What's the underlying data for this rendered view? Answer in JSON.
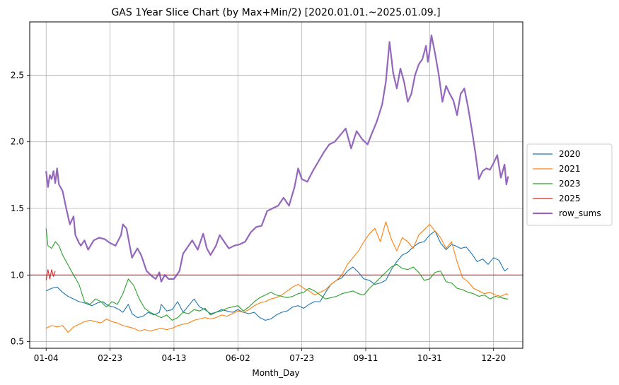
{
  "chart_data": {
    "type": "line",
    "title": "GAS 1Year Slice Chart (by Max+Min/2) [2020.01.01.~2025.01.09.]",
    "xlabel": "Month_Day",
    "ylabel": "",
    "x_tick_labels": [
      "01-04",
      "02-23",
      "04-13",
      "06-02",
      "07-23",
      "09-11",
      "10-31",
      "12-20"
    ],
    "y_tick_labels": [
      "0.5",
      "1.0",
      "1.5",
      "2.0",
      "2.5"
    ],
    "x_tick_positions": [
      0,
      35,
      70,
      105,
      140,
      175,
      210,
      245
    ],
    "x_range": [
      -9,
      261
    ],
    "y_range": [
      0.45,
      2.9
    ],
    "grid": true,
    "legend_position": "right",
    "series": [
      {
        "name": "2020",
        "color": "#1f77b4",
        "x": [
          0,
          3,
          6,
          9,
          12,
          15,
          18,
          21,
          25,
          28,
          31,
          34,
          37,
          40,
          42,
          45,
          47,
          50,
          53,
          56,
          59,
          62,
          63,
          66,
          69,
          72,
          75,
          78,
          81,
          84,
          87,
          90,
          93,
          96,
          99,
          102,
          105,
          108,
          111,
          114,
          117,
          120,
          123,
          126,
          129,
          132,
          135,
          138,
          141,
          144,
          147,
          150,
          153,
          156,
          159,
          162,
          165,
          168,
          171,
          174,
          177,
          180,
          183,
          186,
          189,
          192,
          195,
          198,
          201,
          204,
          207,
          210,
          213,
          216,
          219,
          222,
          224,
          227,
          230,
          233,
          236,
          239,
          242,
          245,
          248,
          251,
          253
        ],
        "values": [
          0.88,
          0.9,
          0.91,
          0.87,
          0.84,
          0.82,
          0.8,
          0.79,
          0.77,
          0.79,
          0.8,
          0.77,
          0.76,
          0.74,
          0.72,
          0.78,
          0.71,
          0.68,
          0.69,
          0.72,
          0.7,
          0.72,
          0.78,
          0.73,
          0.74,
          0.8,
          0.72,
          0.77,
          0.82,
          0.76,
          0.74,
          0.71,
          0.72,
          0.74,
          0.73,
          0.72,
          0.74,
          0.72,
          0.71,
          0.72,
          0.68,
          0.66,
          0.67,
          0.7,
          0.72,
          0.73,
          0.76,
          0.77,
          0.75,
          0.78,
          0.8,
          0.8,
          0.87,
          0.93,
          0.96,
          0.98,
          1.03,
          1.06,
          1.02,
          0.97,
          0.96,
          0.93,
          0.94,
          0.96,
          1.04,
          1.1,
          1.15,
          1.17,
          1.21,
          1.24,
          1.25,
          1.3,
          1.33,
          1.24,
          1.19,
          1.23,
          1.22,
          1.2,
          1.21,
          1.16,
          1.1,
          1.12,
          1.08,
          1.13,
          1.11,
          1.03,
          1.05
        ]
      },
      {
        "name": "2021",
        "color": "#ff7f0e",
        "x": [
          0,
          3,
          6,
          9,
          12,
          15,
          18,
          21,
          24,
          27,
          30,
          33,
          36,
          39,
          42,
          45,
          48,
          51,
          54,
          57,
          60,
          63,
          66,
          69,
          72,
          75,
          78,
          81,
          84,
          87,
          90,
          93,
          96,
          99,
          102,
          105,
          108,
          111,
          114,
          117,
          120,
          123,
          126,
          129,
          132,
          135,
          138,
          141,
          144,
          147,
          150,
          153,
          156,
          159,
          162,
          165,
          168,
          171,
          174,
          177,
          180,
          183,
          186,
          189,
          192,
          195,
          198,
          201,
          204,
          207,
          210,
          213,
          216,
          219,
          222,
          225,
          228,
          231,
          234,
          237,
          240,
          243,
          246,
          249,
          252,
          253
        ],
        "values": [
          0.6,
          0.62,
          0.61,
          0.62,
          0.57,
          0.61,
          0.63,
          0.65,
          0.66,
          0.65,
          0.64,
          0.67,
          0.65,
          0.64,
          0.62,
          0.61,
          0.6,
          0.58,
          0.59,
          0.58,
          0.59,
          0.6,
          0.59,
          0.6,
          0.62,
          0.63,
          0.64,
          0.66,
          0.67,
          0.68,
          0.67,
          0.68,
          0.7,
          0.69,
          0.71,
          0.73,
          0.72,
          0.74,
          0.77,
          0.79,
          0.8,
          0.82,
          0.83,
          0.85,
          0.88,
          0.91,
          0.93,
          0.9,
          0.88,
          0.85,
          0.87,
          0.89,
          0.93,
          0.96,
          1.0,
          1.08,
          1.13,
          1.18,
          1.25,
          1.31,
          1.35,
          1.25,
          1.4,
          1.27,
          1.18,
          1.28,
          1.25,
          1.2,
          1.3,
          1.34,
          1.38,
          1.33,
          1.28,
          1.2,
          1.25,
          1.1,
          0.98,
          0.95,
          0.9,
          0.88,
          0.86,
          0.87,
          0.85,
          0.84,
          0.86,
          0.85
        ]
      },
      {
        "name": "2023",
        "color": "#2ca02c",
        "x": [
          0,
          1,
          3,
          5,
          7,
          9,
          11,
          13,
          15,
          18,
          21,
          24,
          27,
          30,
          33,
          36,
          39,
          42,
          45,
          48,
          51,
          54,
          57,
          60,
          63,
          66,
          69,
          72,
          75,
          78,
          81,
          84,
          87,
          90,
          93,
          96,
          99,
          102,
          105,
          108,
          111,
          114,
          117,
          120,
          123,
          126,
          129,
          132,
          135,
          138,
          141,
          144,
          147,
          150,
          153,
          156,
          159,
          162,
          165,
          168,
          171,
          174,
          177,
          180,
          183,
          186,
          189,
          192,
          195,
          198,
          201,
          204,
          207,
          210,
          213,
          216,
          219,
          222,
          225,
          228,
          231,
          234,
          237,
          240,
          243,
          246,
          249,
          252,
          253
        ],
        "values": [
          1.35,
          1.22,
          1.2,
          1.25,
          1.22,
          1.15,
          1.1,
          1.05,
          1.0,
          0.93,
          0.8,
          0.78,
          0.82,
          0.8,
          0.76,
          0.8,
          0.78,
          0.86,
          0.97,
          0.92,
          0.82,
          0.75,
          0.72,
          0.7,
          0.68,
          0.7,
          0.66,
          0.68,
          0.72,
          0.71,
          0.74,
          0.73,
          0.75,
          0.7,
          0.72,
          0.73,
          0.75,
          0.76,
          0.77,
          0.73,
          0.76,
          0.8,
          0.83,
          0.85,
          0.87,
          0.85,
          0.84,
          0.83,
          0.84,
          0.86,
          0.87,
          0.9,
          0.88,
          0.85,
          0.82,
          0.83,
          0.84,
          0.86,
          0.87,
          0.88,
          0.86,
          0.85,
          0.9,
          0.94,
          0.98,
          1.02,
          1.06,
          1.08,
          1.05,
          1.04,
          1.06,
          1.02,
          0.96,
          0.97,
          1.02,
          1.03,
          0.95,
          0.94,
          0.9,
          0.89,
          0.87,
          0.86,
          0.84,
          0.85,
          0.82,
          0.84,
          0.83,
          0.82,
          0.82
        ]
      },
      {
        "name": "2025",
        "color": "#d62728",
        "x": [
          0,
          1,
          2,
          3,
          4,
          5
        ],
        "values": [
          0.96,
          1.04,
          0.97,
          1.04,
          0.99,
          1.03
        ]
      },
      {
        "name": "row_sums",
        "color": "#9467bd",
        "x": [
          0,
          1,
          2,
          3,
          4,
          5,
          6,
          7,
          9,
          11,
          13,
          15,
          16,
          18,
          19,
          21,
          23,
          26,
          29,
          32,
          35,
          38,
          41,
          42,
          44,
          47,
          50,
          52,
          55,
          58,
          60,
          62,
          63,
          65,
          67,
          70,
          73,
          75,
          78,
          80,
          83,
          86,
          88,
          90,
          93,
          95,
          97,
          100,
          103,
          106,
          109,
          112,
          115,
          118,
          121,
          124,
          127,
          130,
          133,
          136,
          138,
          140,
          143,
          146,
          149,
          152,
          155,
          158,
          161,
          164,
          167,
          170,
          173,
          176,
          178,
          181,
          184,
          186,
          188,
          190,
          192,
          194,
          196,
          198,
          200,
          202,
          204,
          206,
          208,
          209,
          210,
          211,
          213,
          215,
          217,
          219,
          221,
          223,
          225,
          227,
          229,
          231,
          233,
          235,
          237,
          239,
          241,
          243,
          245,
          247,
          249,
          251,
          252,
          253
        ],
        "values": [
          1.78,
          1.66,
          1.75,
          1.72,
          1.78,
          1.69,
          1.8,
          1.68,
          1.63,
          1.5,
          1.38,
          1.44,
          1.3,
          1.24,
          1.22,
          1.26,
          1.19,
          1.26,
          1.28,
          1.27,
          1.24,
          1.22,
          1.3,
          1.38,
          1.35,
          1.13,
          1.2,
          1.15,
          1.03,
          0.99,
          0.97,
          1.02,
          0.95,
          1.0,
          0.97,
          0.97,
          1.03,
          1.16,
          1.22,
          1.26,
          1.19,
          1.31,
          1.2,
          1.15,
          1.22,
          1.3,
          1.26,
          1.2,
          1.22,
          1.23,
          1.25,
          1.32,
          1.36,
          1.37,
          1.48,
          1.5,
          1.52,
          1.58,
          1.52,
          1.66,
          1.8,
          1.72,
          1.7,
          1.78,
          1.85,
          1.92,
          1.98,
          2.0,
          2.05,
          2.1,
          1.95,
          2.08,
          2.02,
          1.98,
          2.05,
          2.15,
          2.28,
          2.45,
          2.75,
          2.52,
          2.4,
          2.55,
          2.45,
          2.3,
          2.36,
          2.5,
          2.58,
          2.62,
          2.72,
          2.6,
          2.68,
          2.8,
          2.66,
          2.5,
          2.3,
          2.42,
          2.36,
          2.31,
          2.2,
          2.36,
          2.4,
          2.26,
          2.1,
          1.92,
          1.72,
          1.78,
          1.8,
          1.79,
          1.84,
          1.9,
          1.73,
          1.83,
          1.68,
          1.74
        ]
      },
      {
        "name": "",
        "color": "#d62728",
        "x": [
          -9,
          261
        ],
        "values": [
          1.0,
          1.0
        ]
      }
    ]
  }
}
